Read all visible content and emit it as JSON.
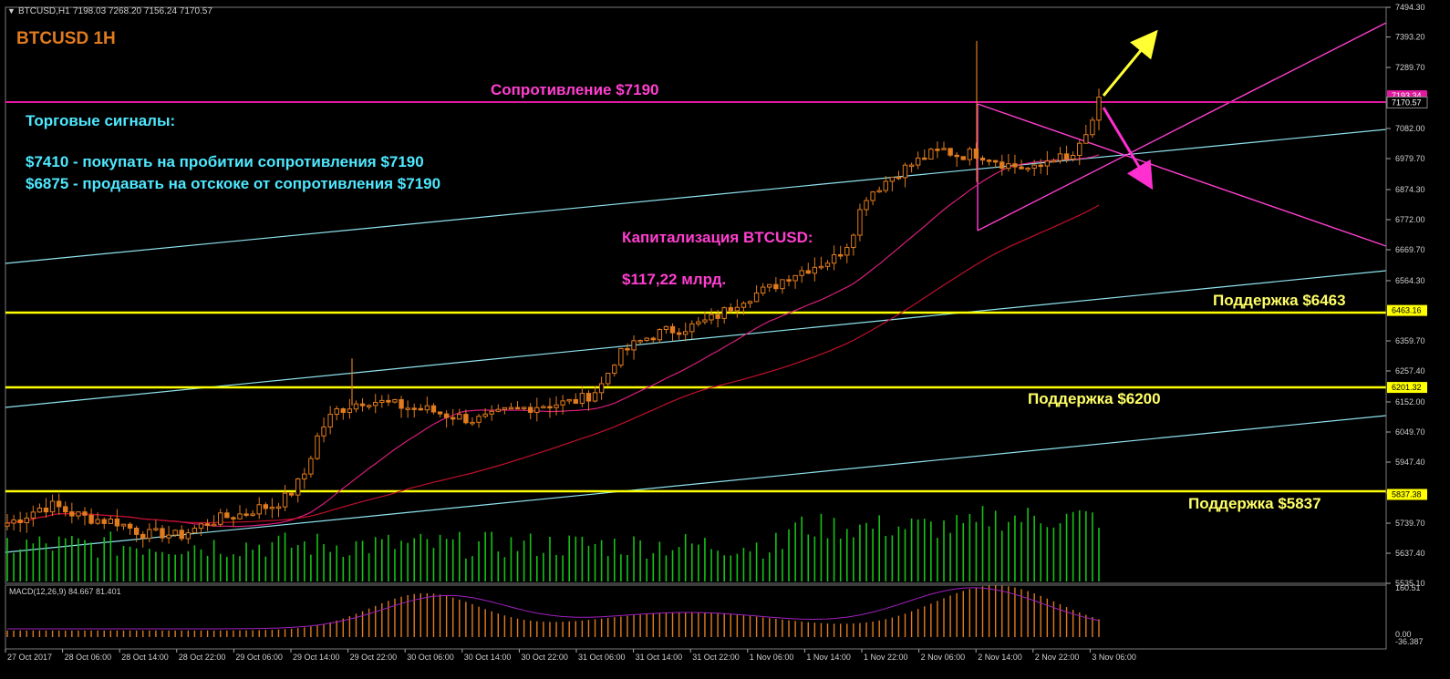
{
  "header": {
    "instrument": "BTCUSD,H1",
    "ohlc": "7198.03 7268.20 7156.24 7170.57"
  },
  "annotations": {
    "title": "BTCUSD 1H",
    "resistance": "Сопротивление $7190",
    "signals_title": "Торговые сигналы:",
    "signal_buy": "$7410 - покупать на пробитии сопротивления $7190",
    "signal_sell": "$6875 - продавать на отскоке от  сопротивления $7190",
    "cap_title": "Капитализация BTCUSD:",
    "cap_value": "$117,22 млрд.",
    "support_6463": "Поддержка $6463",
    "support_6200": "Поддержка $6200",
    "support_5837": "Поддержка $5837"
  },
  "price_axis": {
    "ticks": [
      "7494.30",
      "7393.20",
      "7289.70",
      "7082.00",
      "6979.70",
      "6874.30",
      "6772.00",
      "6669.70",
      "6564.30",
      "6359.70",
      "6257.40",
      "6152.00",
      "6049.70",
      "5947.40",
      "5842.30",
      "5739.70",
      "5637.40",
      "5535.10"
    ],
    "tags": {
      "resistance": "7193.34",
      "current": "7170.57",
      "support1": "6463.16",
      "support2": "6201.32",
      "support3": "5837.38"
    }
  },
  "macd_axis": {
    "label": "MACD(12,26,9) 84.667 81.401",
    "ticks": [
      "160.51",
      "0.00",
      "-36.387"
    ]
  },
  "time_axis": [
    "27 Oct 2017",
    "28 Oct 06:00",
    "28 Oct 14:00",
    "28 Oct 22:00",
    "29 Oct 06:00",
    "29 Oct 14:00",
    "29 Oct 22:00",
    "30 Oct 06:00",
    "30 Oct 14:00",
    "30 Oct 22:00",
    "31 Oct 06:00",
    "31 Oct 14:00",
    "31 Oct 22:00",
    "1 Nov 06:00",
    "1 Nov 14:00",
    "1 Nov 22:00",
    "2 Nov 06:00",
    "2 Nov 14:00",
    "2 Nov 22:00",
    "3 Nov 06:00"
  ],
  "colors": {
    "background": "#000000",
    "bull": "#e07b1e",
    "bear": "#e07b1e",
    "volume": "#16c216",
    "channel": "#8fe4f0",
    "support": "#ffff00",
    "resistance": "#e0199e",
    "triangle": "#ff3fd0",
    "ma_fast": "#d81e7a",
    "ma_slow": "#c0102a",
    "text_cyan": "#4ee8ff",
    "text_magenta": "#ff3fd0",
    "text_title": "#e07b1e",
    "arrow_up": "#ffff33",
    "arrow_down": "#ff2fd0",
    "macd_hist": "#e07b1e",
    "macd_signal": "#a020c0"
  },
  "chart_data": {
    "type": "candlestick",
    "timeframe": "H1",
    "ylim": [
      5535.1,
      7494.3
    ],
    "close_path": [
      5740,
      5760,
      5790,
      5800,
      5775,
      5760,
      5750,
      5745,
      5720,
      5700,
      5705,
      5695,
      5720,
      5745,
      5760,
      5770,
      5790,
      5800,
      5830,
      5900,
      6050,
      6120,
      6140,
      6160,
      6150,
      6140,
      6130,
      6125,
      6110,
      6100,
      6090,
      6100,
      6120,
      6130,
      6140,
      6145,
      6150,
      6165,
      6200,
      6300,
      6340,
      6370,
      6390,
      6400,
      6410,
      6430,
      6460,
      6500,
      6520,
      6540,
      6580,
      6600,
      6620,
      6640,
      6700,
      6850,
      6890,
      6930,
      6960,
      6990,
      7010,
      6990,
      7000,
      6985,
      6960,
      6950,
      6940,
      6990,
      6970,
      7030,
      7170
    ],
    "levels": {
      "resistance": 7190,
      "support": [
        6463,
        6200,
        5837
      ]
    },
    "signals": {
      "buy": 7410,
      "sell": 6875
    }
  }
}
